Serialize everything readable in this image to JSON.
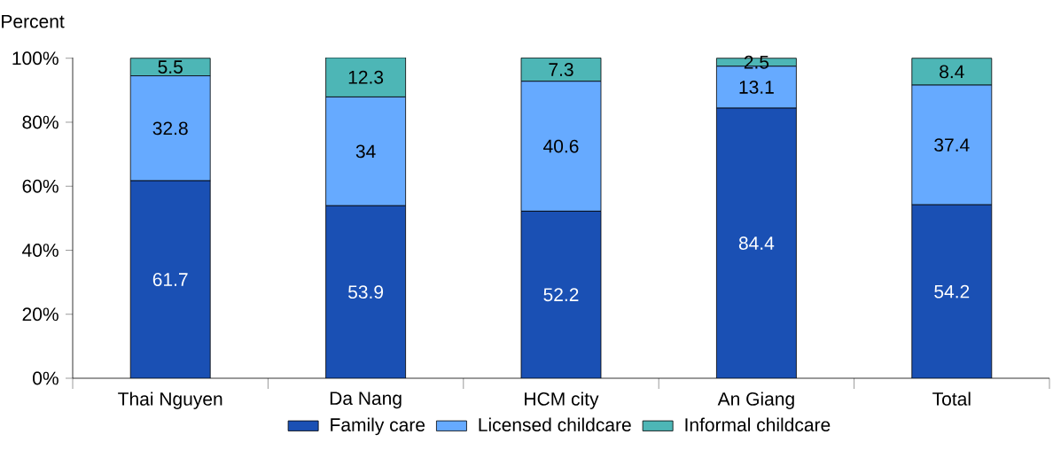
{
  "chart_data": {
    "type": "bar",
    "stacked": true,
    "ylabel": "Percent",
    "categories": [
      "Thai Nguyen",
      "Da Nang",
      "HCM city",
      "An Giang",
      "Total"
    ],
    "series": [
      {
        "name": "Family care",
        "color": "#1a50b4",
        "values": [
          61.7,
          53.9,
          52.2,
          84.4,
          54.2
        ]
      },
      {
        "name": "Licensed childcare",
        "color": "#66aaff",
        "values": [
          32.8,
          34,
          40.6,
          13.1,
          37.4
        ]
      },
      {
        "name": "Informal childcare",
        "color": "#4db6b6",
        "values": [
          5.5,
          12.3,
          7.3,
          2.5,
          8.4
        ]
      }
    ],
    "ylim": [
      0,
      100.2
    ],
    "yticks": [
      {
        "value": 0,
        "label": "0%"
      },
      {
        "value": 20,
        "label": "20%"
      },
      {
        "value": 40,
        "label": "40%"
      },
      {
        "value": 60,
        "label": "60%"
      },
      {
        "value": 80,
        "label": "80%"
      },
      {
        "value": 100,
        "label": "100%"
      }
    ],
    "data_labels": true,
    "legend": "bottom",
    "grid": false
  }
}
